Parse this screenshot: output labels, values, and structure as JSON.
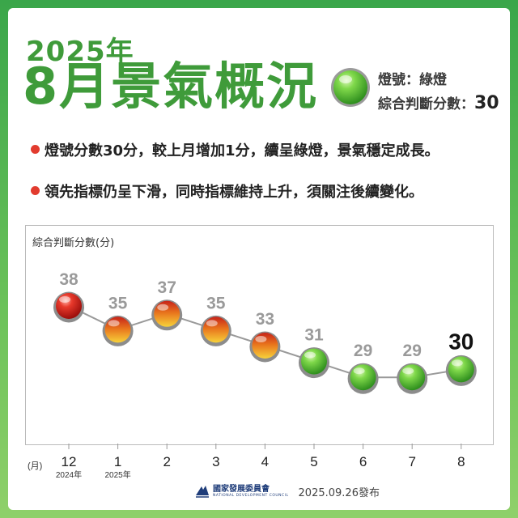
{
  "header": {
    "year": "2025年",
    "title": "8月景氣概況",
    "signal_line": "燈號：綠燈",
    "score_label": "綜合判斷分數：",
    "score_value": "30"
  },
  "bullets": [
    "燈號分數30分，較上月增加1分，續呈綠燈，景氣穩定成長。",
    "領先指標仍呈下滑，同時指標維持上升，須關注後續變化。"
  ],
  "colors": {
    "brand_green": "#3f9b3a",
    "green_light": "#4cb634",
    "yellow_red_light": "#e8731c",
    "red_light": "#d5201b",
    "bullet_red": "#e23b2e"
  },
  "chart_data": {
    "type": "line",
    "ylabel": "綜合判斷分數(分)",
    "xlabel": "(月)",
    "categories": [
      "12",
      "1",
      "2",
      "3",
      "4",
      "5",
      "6",
      "7",
      "8"
    ],
    "sub_labels": [
      "2024年",
      "2025年",
      "",
      "",
      "",
      "",
      "",
      "",
      ""
    ],
    "values": [
      38,
      35,
      37,
      35,
      33,
      31,
      29,
      29,
      30
    ],
    "signals": [
      "red",
      "yellow-red",
      "yellow-red",
      "yellow-red",
      "yellow-red",
      "green",
      "green",
      "green",
      "green"
    ],
    "highlight_index": 8,
    "grid": false
  },
  "footer": {
    "org_name": "國家發展委員會",
    "org_name_en": "NATIONAL DEVELOPMENT COUNCIL",
    "published": "2025.09.26發布"
  }
}
